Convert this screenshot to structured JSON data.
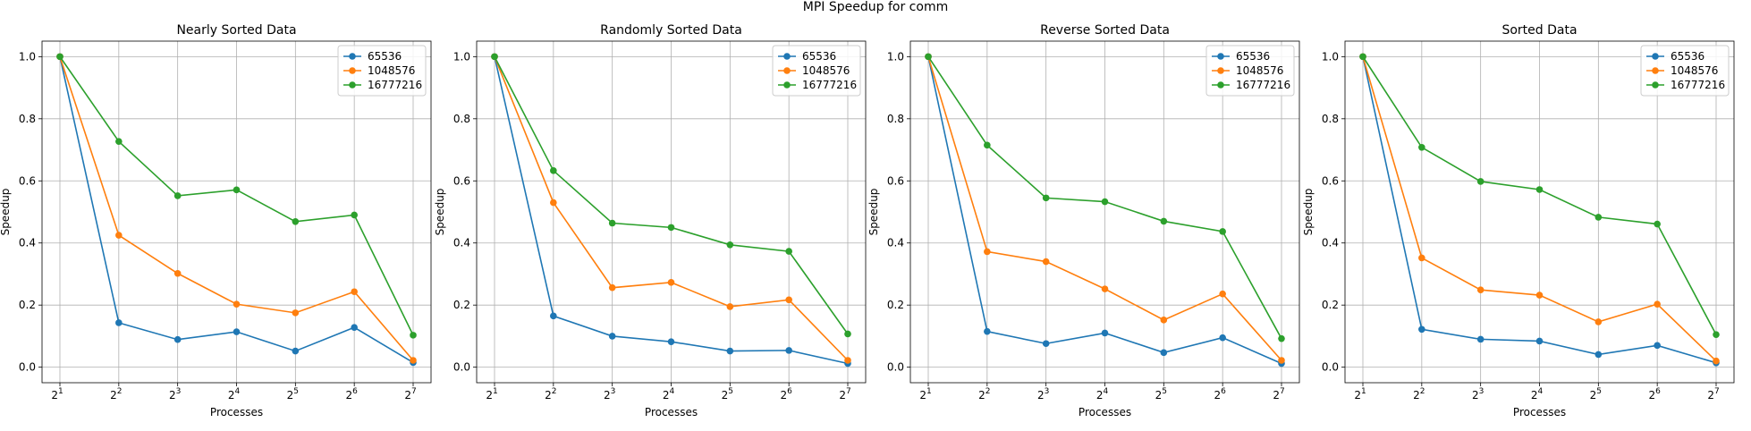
{
  "figure": {
    "suptitle": "MPI Speedup for comm"
  },
  "chart_data": [
    {
      "type": "line",
      "title": "Nearly Sorted Data",
      "xlabel": "Processes",
      "ylabel": "Speedup",
      "x": [
        2,
        4,
        8,
        16,
        32,
        64,
        128
      ],
      "x_tick_labels": [
        {
          "base": "2",
          "exp": "1"
        },
        {
          "base": "2",
          "exp": "2"
        },
        {
          "base": "2",
          "exp": "3"
        },
        {
          "base": "2",
          "exp": "4"
        },
        {
          "base": "2",
          "exp": "5"
        },
        {
          "base": "2",
          "exp": "6"
        },
        {
          "base": "2",
          "exp": "7"
        }
      ],
      "x_scale": "log2",
      "ylim": [
        -0.05,
        1.05
      ],
      "y_ticks": [
        "0.0",
        "0.2",
        "0.4",
        "0.6",
        "0.8",
        "1.0"
      ],
      "grid": true,
      "legend": "top-right",
      "series": [
        {
          "name": "65536",
          "color": "#1f77b4",
          "values": [
            1.0,
            0.143,
            0.089,
            0.114,
            0.052,
            0.128,
            0.015
          ]
        },
        {
          "name": "1048576",
          "color": "#ff7f0e",
          "values": [
            1.0,
            0.425,
            0.302,
            0.203,
            0.175,
            0.243,
            0.022
          ]
        },
        {
          "name": "16777216",
          "color": "#2ca02c",
          "values": [
            1.0,
            0.727,
            0.552,
            0.571,
            0.469,
            0.49,
            0.103
          ]
        }
      ]
    },
    {
      "type": "line",
      "title": "Randomly Sorted Data",
      "xlabel": "Processes",
      "ylabel": "Speedup",
      "x": [
        2,
        4,
        8,
        16,
        32,
        64,
        128
      ],
      "x_tick_labels": [
        {
          "base": "2",
          "exp": "1"
        },
        {
          "base": "2",
          "exp": "2"
        },
        {
          "base": "2",
          "exp": "3"
        },
        {
          "base": "2",
          "exp": "4"
        },
        {
          "base": "2",
          "exp": "5"
        },
        {
          "base": "2",
          "exp": "6"
        },
        {
          "base": "2",
          "exp": "7"
        }
      ],
      "x_scale": "log2",
      "ylim": [
        -0.05,
        1.05
      ],
      "y_ticks": [
        "0.0",
        "0.2",
        "0.4",
        "0.6",
        "0.8",
        "1.0"
      ],
      "grid": true,
      "legend": "top-right",
      "series": [
        {
          "name": "65536",
          "color": "#1f77b4",
          "values": [
            1.0,
            0.165,
            0.1,
            0.082,
            0.052,
            0.054,
            0.012
          ]
        },
        {
          "name": "1048576",
          "color": "#ff7f0e",
          "values": [
            1.0,
            0.53,
            0.256,
            0.273,
            0.195,
            0.217,
            0.022
          ]
        },
        {
          "name": "16777216",
          "color": "#2ca02c",
          "values": [
            1.0,
            0.633,
            0.464,
            0.45,
            0.394,
            0.373,
            0.107
          ]
        }
      ]
    },
    {
      "type": "line",
      "title": "Reverse Sorted Data",
      "xlabel": "Processes",
      "ylabel": "Speedup",
      "x": [
        2,
        4,
        8,
        16,
        32,
        64,
        128
      ],
      "x_tick_labels": [
        {
          "base": "2",
          "exp": "1"
        },
        {
          "base": "2",
          "exp": "2"
        },
        {
          "base": "2",
          "exp": "3"
        },
        {
          "base": "2",
          "exp": "4"
        },
        {
          "base": "2",
          "exp": "5"
        },
        {
          "base": "2",
          "exp": "6"
        },
        {
          "base": "2",
          "exp": "7"
        }
      ],
      "x_scale": "log2",
      "ylim": [
        -0.05,
        1.05
      ],
      "y_ticks": [
        "0.0",
        "0.2",
        "0.4",
        "0.6",
        "0.8",
        "1.0"
      ],
      "grid": true,
      "legend": "top-right",
      "series": [
        {
          "name": "65536",
          "color": "#1f77b4",
          "values": [
            1.0,
            0.115,
            0.076,
            0.11,
            0.047,
            0.095,
            0.012
          ]
        },
        {
          "name": "1048576",
          "color": "#ff7f0e",
          "values": [
            1.0,
            0.372,
            0.34,
            0.252,
            0.152,
            0.236,
            0.022
          ]
        },
        {
          "name": "16777216",
          "color": "#2ca02c",
          "values": [
            1.0,
            0.715,
            0.545,
            0.533,
            0.47,
            0.437,
            0.092
          ]
        }
      ]
    },
    {
      "type": "line",
      "title": "Sorted Data",
      "xlabel": "Processes",
      "ylabel": "Speedup",
      "x": [
        2,
        4,
        8,
        16,
        32,
        64,
        128
      ],
      "x_tick_labels": [
        {
          "base": "2",
          "exp": "1"
        },
        {
          "base": "2",
          "exp": "2"
        },
        {
          "base": "2",
          "exp": "3"
        },
        {
          "base": "2",
          "exp": "4"
        },
        {
          "base": "2",
          "exp": "5"
        },
        {
          "base": "2",
          "exp": "6"
        },
        {
          "base": "2",
          "exp": "7"
        }
      ],
      "x_scale": "log2",
      "ylim": [
        -0.05,
        1.05
      ],
      "y_ticks": [
        "0.0",
        "0.2",
        "0.4",
        "0.6",
        "0.8",
        "1.0"
      ],
      "grid": true,
      "legend": "top-right",
      "series": [
        {
          "name": "65536",
          "color": "#1f77b4",
          "values": [
            1.0,
            0.122,
            0.09,
            0.084,
            0.041,
            0.07,
            0.014
          ]
        },
        {
          "name": "1048576",
          "color": "#ff7f0e",
          "values": [
            1.0,
            0.352,
            0.249,
            0.232,
            0.146,
            0.203,
            0.02
          ]
        },
        {
          "name": "16777216",
          "color": "#2ca02c",
          "values": [
            1.0,
            0.708,
            0.598,
            0.572,
            0.483,
            0.461,
            0.105
          ]
        }
      ]
    }
  ]
}
